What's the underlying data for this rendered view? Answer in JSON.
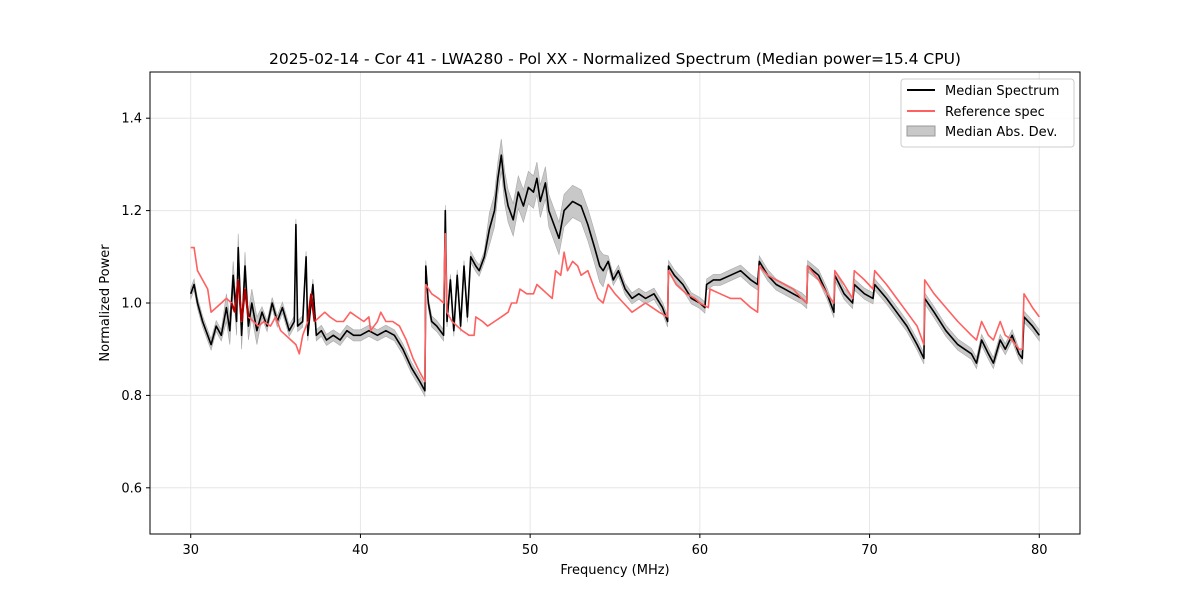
{
  "chart_data": {
    "type": "line",
    "title": "2025-02-14 - Cor 41 - LWA280 - Pol XX - Normalized Spectrum (Median power=15.4 CPU)",
    "xlabel": "Frequency (MHz)",
    "ylabel": "Normalized Power",
    "xlim": [
      27.6,
      82.4
    ],
    "ylim": [
      0.5,
      1.5
    ],
    "xticks": [
      30,
      40,
      50,
      60,
      70,
      80
    ],
    "yticks": [
      0.6,
      0.8,
      1.0,
      1.2,
      1.4
    ],
    "grid": true,
    "legend_position": "top-right",
    "legend": [
      "Median Spectrum",
      "Reference spec",
      "Median Abs. Dev."
    ],
    "colors": {
      "median": "#000000",
      "reference": "#ff6060",
      "overlap": "#aa0000",
      "mad_fill": "#c8c8c8",
      "grid": "#e6e6e6"
    },
    "series": [
      {
        "name": "Median Spectrum",
        "points": [
          [
            30.0,
            1.02
          ],
          [
            30.2,
            1.04
          ],
          [
            30.4,
            1.0
          ],
          [
            30.7,
            0.96
          ],
          [
            31.0,
            0.93
          ],
          [
            31.2,
            0.91
          ],
          [
            31.5,
            0.95
          ],
          [
            31.8,
            0.93
          ],
          [
            32.1,
            0.99
          ],
          [
            32.3,
            0.94
          ],
          [
            32.5,
            1.06
          ],
          [
            32.7,
            0.96
          ],
          [
            32.8,
            1.12
          ],
          [
            33.0,
            0.93
          ],
          [
            33.2,
            1.08
          ],
          [
            33.4,
            0.95
          ],
          [
            33.6,
            1.0
          ],
          [
            33.9,
            0.94
          ],
          [
            34.2,
            0.98
          ],
          [
            34.5,
            0.95
          ],
          [
            34.8,
            1.0
          ],
          [
            35.1,
            0.96
          ],
          [
            35.4,
            0.99
          ],
          [
            35.8,
            0.94
          ],
          [
            36.1,
            0.96
          ],
          [
            36.2,
            1.17
          ],
          [
            36.3,
            0.95
          ],
          [
            36.6,
            0.96
          ],
          [
            36.8,
            1.1
          ],
          [
            36.9,
            0.93
          ],
          [
            37.2,
            1.04
          ],
          [
            37.4,
            0.93
          ],
          [
            37.7,
            0.94
          ],
          [
            38.0,
            0.92
          ],
          [
            38.4,
            0.93
          ],
          [
            38.8,
            0.92
          ],
          [
            39.2,
            0.94
          ],
          [
            39.6,
            0.93
          ],
          [
            40.0,
            0.93
          ],
          [
            40.5,
            0.94
          ],
          [
            41.0,
            0.93
          ],
          [
            41.5,
            0.94
          ],
          [
            42.0,
            0.93
          ],
          [
            42.5,
            0.9
          ],
          [
            43.0,
            0.86
          ],
          [
            43.5,
            0.83
          ],
          [
            43.8,
            0.81
          ],
          [
            43.85,
            1.08
          ],
          [
            44.0,
            1.0
          ],
          [
            44.2,
            0.96
          ],
          [
            44.5,
            0.95
          ],
          [
            44.9,
            0.93
          ],
          [
            45.0,
            1.2
          ],
          [
            45.1,
            0.96
          ],
          [
            45.3,
            1.05
          ],
          [
            45.5,
            0.94
          ],
          [
            45.7,
            1.06
          ],
          [
            45.9,
            0.95
          ],
          [
            46.1,
            1.08
          ],
          [
            46.3,
            0.97
          ],
          [
            46.5,
            1.1
          ],
          [
            46.8,
            1.08
          ],
          [
            47.0,
            1.07
          ],
          [
            47.3,
            1.1
          ],
          [
            47.6,
            1.16
          ],
          [
            47.9,
            1.2
          ],
          [
            48.1,
            1.27
          ],
          [
            48.3,
            1.32
          ],
          [
            48.5,
            1.25
          ],
          [
            48.7,
            1.21
          ],
          [
            49.0,
            1.18
          ],
          [
            49.3,
            1.24
          ],
          [
            49.6,
            1.21
          ],
          [
            49.9,
            1.25
          ],
          [
            50.2,
            1.24
          ],
          [
            50.4,
            1.27
          ],
          [
            50.6,
            1.22
          ],
          [
            50.9,
            1.26
          ],
          [
            51.1,
            1.2
          ],
          [
            51.4,
            1.17
          ],
          [
            51.7,
            1.14
          ],
          [
            52.0,
            1.2
          ],
          [
            52.5,
            1.22
          ],
          [
            53.0,
            1.21
          ],
          [
            53.4,
            1.17
          ],
          [
            53.8,
            1.12
          ],
          [
            54.1,
            1.08
          ],
          [
            54.3,
            1.07
          ],
          [
            54.6,
            1.09
          ],
          [
            54.9,
            1.05
          ],
          [
            55.2,
            1.07
          ],
          [
            55.6,
            1.03
          ],
          [
            56.0,
            1.01
          ],
          [
            56.4,
            1.02
          ],
          [
            56.8,
            1.01
          ],
          [
            57.3,
            1.02
          ],
          [
            57.8,
            0.99
          ],
          [
            58.1,
            0.96
          ],
          [
            58.15,
            1.08
          ],
          [
            58.5,
            1.06
          ],
          [
            59.0,
            1.04
          ],
          [
            59.5,
            1.01
          ],
          [
            60.0,
            1.0
          ],
          [
            60.3,
            0.99
          ],
          [
            60.4,
            1.04
          ],
          [
            60.8,
            1.05
          ],
          [
            61.2,
            1.05
          ],
          [
            61.8,
            1.06
          ],
          [
            62.4,
            1.07
          ],
          [
            63.0,
            1.05
          ],
          [
            63.4,
            1.04
          ],
          [
            63.5,
            1.09
          ],
          [
            64.0,
            1.06
          ],
          [
            64.5,
            1.04
          ],
          [
            65.0,
            1.03
          ],
          [
            65.5,
            1.02
          ],
          [
            66.0,
            1.01
          ],
          [
            66.3,
            1.0
          ],
          [
            66.35,
            1.08
          ],
          [
            67.0,
            1.06
          ],
          [
            67.5,
            1.02
          ],
          [
            67.9,
            0.98
          ],
          [
            67.95,
            1.06
          ],
          [
            68.5,
            1.02
          ],
          [
            69.0,
            1.0
          ],
          [
            69.1,
            1.04
          ],
          [
            69.7,
            1.02
          ],
          [
            70.2,
            1.01
          ],
          [
            70.3,
            1.04
          ],
          [
            71.0,
            1.01
          ],
          [
            71.6,
            0.98
          ],
          [
            72.2,
            0.95
          ],
          [
            72.8,
            0.91
          ],
          [
            73.2,
            0.88
          ],
          [
            73.25,
            1.01
          ],
          [
            73.8,
            0.98
          ],
          [
            74.5,
            0.94
          ],
          [
            75.2,
            0.91
          ],
          [
            76.0,
            0.89
          ],
          [
            76.3,
            0.87
          ],
          [
            76.6,
            0.92
          ],
          [
            77.0,
            0.89
          ],
          [
            77.3,
            0.87
          ],
          [
            77.7,
            0.92
          ],
          [
            78.0,
            0.9
          ],
          [
            78.4,
            0.93
          ],
          [
            78.8,
            0.89
          ],
          [
            79.0,
            0.88
          ],
          [
            79.1,
            0.97
          ],
          [
            79.6,
            0.95
          ],
          [
            80.0,
            0.93
          ]
        ]
      },
      {
        "name": "Reference spec",
        "points": [
          [
            30.0,
            1.12
          ],
          [
            30.2,
            1.12
          ],
          [
            30.4,
            1.07
          ],
          [
            30.7,
            1.05
          ],
          [
            31.0,
            1.03
          ],
          [
            31.2,
            0.98
          ],
          [
            31.5,
            0.99
          ],
          [
            31.8,
            1.0
          ],
          [
            32.1,
            1.01
          ],
          [
            32.4,
            1.0
          ],
          [
            32.6,
            0.98
          ],
          [
            32.8,
            1.05
          ],
          [
            33.0,
            0.96
          ],
          [
            33.2,
            1.03
          ],
          [
            33.4,
            0.97
          ],
          [
            33.7,
            0.96
          ],
          [
            34.0,
            0.95
          ],
          [
            34.3,
            0.96
          ],
          [
            34.7,
            0.95
          ],
          [
            35.0,
            0.97
          ],
          [
            35.3,
            0.94
          ],
          [
            35.6,
            0.93
          ],
          [
            35.9,
            0.92
          ],
          [
            36.2,
            0.91
          ],
          [
            36.4,
            0.89
          ],
          [
            36.6,
            0.93
          ],
          [
            36.9,
            0.96
          ],
          [
            37.1,
            1.02
          ],
          [
            37.3,
            0.96
          ],
          [
            37.6,
            0.97
          ],
          [
            37.9,
            0.98
          ],
          [
            38.2,
            0.97
          ],
          [
            38.6,
            0.96
          ],
          [
            39.0,
            0.96
          ],
          [
            39.4,
            0.98
          ],
          [
            39.8,
            0.97
          ],
          [
            40.2,
            0.96
          ],
          [
            40.5,
            0.97
          ],
          [
            40.6,
            0.94
          ],
          [
            41.0,
            0.96
          ],
          [
            41.2,
            0.98
          ],
          [
            41.5,
            0.96
          ],
          [
            41.9,
            0.96
          ],
          [
            42.3,
            0.95
          ],
          [
            42.7,
            0.92
          ],
          [
            43.1,
            0.88
          ],
          [
            43.5,
            0.85
          ],
          [
            43.8,
            0.83
          ],
          [
            43.85,
            1.04
          ],
          [
            44.2,
            1.02
          ],
          [
            44.6,
            1.01
          ],
          [
            44.9,
            1.0
          ],
          [
            45.0,
            1.15
          ],
          [
            45.1,
            0.98
          ],
          [
            45.4,
            0.96
          ],
          [
            45.7,
            0.95
          ],
          [
            46.0,
            0.94
          ],
          [
            46.4,
            0.93
          ],
          [
            46.7,
            0.93
          ],
          [
            46.8,
            0.97
          ],
          [
            47.2,
            0.96
          ],
          [
            47.5,
            0.95
          ],
          [
            47.9,
            0.96
          ],
          [
            48.3,
            0.97
          ],
          [
            48.7,
            0.98
          ],
          [
            48.9,
            1.0
          ],
          [
            49.2,
            1.0
          ],
          [
            49.4,
            1.03
          ],
          [
            49.8,
            1.02
          ],
          [
            50.2,
            1.02
          ],
          [
            50.4,
            1.04
          ],
          [
            50.7,
            1.03
          ],
          [
            51.0,
            1.02
          ],
          [
            51.3,
            1.01
          ],
          [
            51.5,
            1.07
          ],
          [
            51.8,
            1.06
          ],
          [
            52.0,
            1.11
          ],
          [
            52.2,
            1.07
          ],
          [
            52.5,
            1.09
          ],
          [
            52.8,
            1.08
          ],
          [
            53.0,
            1.06
          ],
          [
            53.4,
            1.07
          ],
          [
            53.7,
            1.04
          ],
          [
            54.0,
            1.01
          ],
          [
            54.3,
            1.0
          ],
          [
            54.6,
            1.04
          ],
          [
            55.0,
            1.02
          ],
          [
            55.5,
            1.0
          ],
          [
            56.0,
            0.98
          ],
          [
            56.4,
            0.99
          ],
          [
            56.8,
            1.0
          ],
          [
            57.2,
            0.99
          ],
          [
            57.6,
            0.98
          ],
          [
            58.1,
            0.97
          ],
          [
            58.15,
            1.07
          ],
          [
            58.6,
            1.04
          ],
          [
            59.2,
            1.02
          ],
          [
            59.7,
            1.01
          ],
          [
            60.0,
            1.0
          ],
          [
            60.5,
            0.99
          ],
          [
            60.6,
            1.03
          ],
          [
            61.2,
            1.02
          ],
          [
            61.8,
            1.01
          ],
          [
            62.4,
            1.01
          ],
          [
            63.0,
            0.99
          ],
          [
            63.4,
            0.98
          ],
          [
            63.5,
            1.08
          ],
          [
            64.0,
            1.06
          ],
          [
            64.5,
            1.05
          ],
          [
            65.0,
            1.04
          ],
          [
            65.5,
            1.03
          ],
          [
            66.0,
            1.01
          ],
          [
            66.3,
            1.0
          ],
          [
            66.35,
            1.08
          ],
          [
            67.0,
            1.05
          ],
          [
            67.5,
            1.02
          ],
          [
            67.9,
            1.0
          ],
          [
            67.95,
            1.07
          ],
          [
            68.5,
            1.04
          ],
          [
            69.0,
            1.01
          ],
          [
            69.1,
            1.07
          ],
          [
            69.7,
            1.05
          ],
          [
            70.2,
            1.03
          ],
          [
            70.3,
            1.07
          ],
          [
            71.0,
            1.04
          ],
          [
            71.6,
            1.01
          ],
          [
            72.2,
            0.98
          ],
          [
            72.8,
            0.95
          ],
          [
            73.2,
            0.91
          ],
          [
            73.25,
            1.05
          ],
          [
            73.8,
            1.02
          ],
          [
            74.5,
            0.99
          ],
          [
            75.2,
            0.96
          ],
          [
            76.0,
            0.93
          ],
          [
            76.3,
            0.92
          ],
          [
            76.6,
            0.96
          ],
          [
            77.0,
            0.93
          ],
          [
            77.3,
            0.92
          ],
          [
            77.7,
            0.96
          ],
          [
            78.0,
            0.93
          ],
          [
            78.4,
            0.92
          ],
          [
            78.8,
            0.9
          ],
          [
            79.0,
            0.9
          ],
          [
            79.1,
            1.02
          ],
          [
            79.6,
            0.99
          ],
          [
            80.0,
            0.97
          ]
        ]
      }
    ]
  }
}
